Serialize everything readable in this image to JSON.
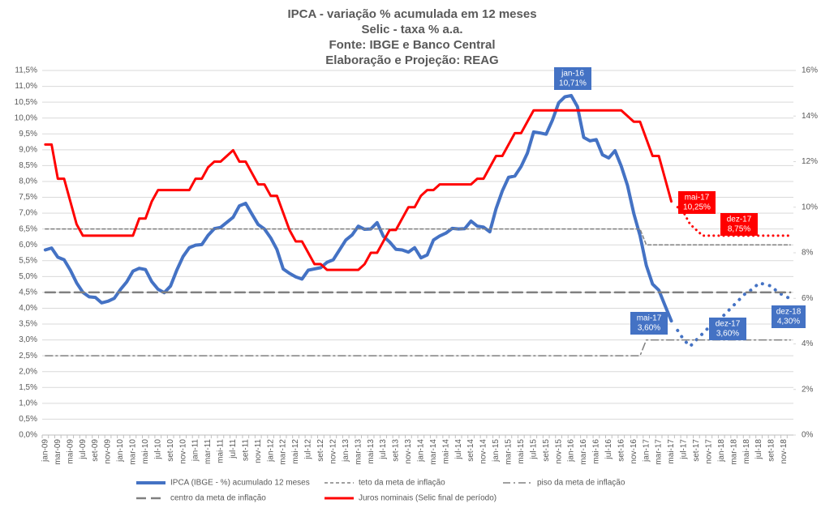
{
  "chart_data": {
    "type": "line",
    "title": [
      "IPCA - variação %  acumulada em 12 meses",
      "Selic - taxa % a.a.",
      "Fonte: IBGE e Banco Central",
      "Elaboração e Projeção: REAG"
    ],
    "categories": [
      "jan-09",
      null,
      "mar-09",
      null,
      "mai-09",
      null,
      "jul-09",
      null,
      "set-09",
      null,
      "nov-09",
      null,
      "jan-10",
      null,
      "mar-10",
      null,
      "mai-10",
      null,
      "jul-10",
      null,
      "set-10",
      null,
      "nov-10",
      null,
      "jan-11",
      null,
      "mar-11",
      null,
      "mai-11",
      null,
      "jul-11",
      null,
      "set-11",
      null,
      "nov-11",
      null,
      "jan-12",
      null,
      "mar-12",
      null,
      "mai-12",
      null,
      "jul-12",
      null,
      "set-12",
      null,
      "nov-12",
      null,
      "jan-13",
      null,
      "mar-13",
      null,
      "mai-13",
      null,
      "jul-13",
      null,
      "set-13",
      null,
      "nov-13",
      null,
      "jan-14",
      null,
      "mar-14",
      null,
      "mai-14",
      null,
      "jul-14",
      null,
      "set-14",
      null,
      "nov-14",
      null,
      "jan-15",
      null,
      "mar-15",
      null,
      "mai-15",
      null,
      "jul-15",
      null,
      "set-15",
      null,
      "nov-15",
      null,
      "jan-16",
      null,
      "mar-16",
      null,
      "mai-16",
      null,
      "jul-16",
      null,
      "set-16",
      null,
      "nov-16",
      null,
      "jan-17",
      null,
      "mar-17",
      null,
      "mai-17",
      null,
      "jul-17",
      null,
      "set-17",
      null,
      "nov-17",
      null,
      "jan-18",
      null,
      "mar-18",
      null,
      "mai-18",
      null,
      "jul-18",
      null,
      "set-18",
      null,
      "nov-18",
      null
    ],
    "ylim": [
      0,
      11.5
    ],
    "yticks": [
      {
        "value": 0,
        "label": "0,0%"
      },
      {
        "value": 0.5,
        "label": "0,5%"
      },
      {
        "value": 1,
        "label": "1,0%"
      },
      {
        "value": 1.5,
        "label": "1,5%"
      },
      {
        "value": 2,
        "label": "2,0%"
      },
      {
        "value": 2.5,
        "label": "2,5%"
      },
      {
        "value": 3,
        "label": "3,0%"
      },
      {
        "value": 3.5,
        "label": "3,5%"
      },
      {
        "value": 4,
        "label": "4,0%"
      },
      {
        "value": 4.5,
        "label": "4,5%"
      },
      {
        "value": 5,
        "label": "5,0%"
      },
      {
        "value": 5.5,
        "label": "5,5%"
      },
      {
        "value": 6,
        "label": "6,0%"
      },
      {
        "value": 6.5,
        "label": "6,5%"
      },
      {
        "value": 7,
        "label": "7,0%"
      },
      {
        "value": 7.5,
        "label": "7,5%"
      },
      {
        "value": 8,
        "label": "8,0%"
      },
      {
        "value": 8.5,
        "label": "8,5%"
      },
      {
        "value": 9,
        "label": "9,0%"
      },
      {
        "value": 9.5,
        "label": "9,5%"
      },
      {
        "value": 10,
        "label": "10,0%"
      },
      {
        "value": 10.5,
        "label": "10,5%"
      },
      {
        "value": 11,
        "label": "11,0%"
      },
      {
        "value": 11.5,
        "label": "11,5%"
      }
    ],
    "y2lim": [
      0,
      16
    ],
    "y2ticks": [
      {
        "value": 0,
        "label": "0%"
      },
      {
        "value": 2,
        "label": "2%"
      },
      {
        "value": 4,
        "label": "4%"
      },
      {
        "value": 6,
        "label": "6%"
      },
      {
        "value": 8,
        "label": "8%"
      },
      {
        "value": 10,
        "label": "10%"
      },
      {
        "value": 12,
        "label": "12%"
      },
      {
        "value": 14,
        "label": "14%"
      },
      {
        "value": 16,
        "label": "16%"
      }
    ],
    "grid": true,
    "series": [
      {
        "name": "IPCA (IBGE - %) acumulado 12 meses",
        "color": "#4472c4",
        "style": "solid",
        "values": [
          5.84,
          5.9,
          5.61,
          5.53,
          5.2,
          4.8,
          4.5,
          4.36,
          4.34,
          4.17,
          4.22,
          4.31,
          4.59,
          4.83,
          5.17,
          5.26,
          5.22,
          4.84,
          4.6,
          4.49,
          4.7,
          5.2,
          5.63,
          5.91,
          5.99,
          6.01,
          6.3,
          6.51,
          6.55,
          6.71,
          6.87,
          7.23,
          7.31,
          6.97,
          6.64,
          6.5,
          6.22,
          5.85,
          5.24,
          5.1,
          4.99,
          4.92,
          5.2,
          5.24,
          5.28,
          5.45,
          5.53,
          5.84,
          6.15,
          6.31,
          6.59,
          6.49,
          6.5,
          6.7,
          6.27,
          6.09,
          5.86,
          5.84,
          5.77,
          5.91,
          5.59,
          5.68,
          6.15,
          6.28,
          6.37,
          6.52,
          6.5,
          6.51,
          6.75,
          6.59,
          6.56,
          6.41,
          7.14,
          7.7,
          8.13,
          8.17,
          8.47,
          8.89,
          9.56,
          9.53,
          9.49,
          9.93,
          10.48,
          10.67,
          10.71,
          10.36,
          9.39,
          9.28,
          9.32,
          8.84,
          8.74,
          8.97,
          8.48,
          7.87,
          6.99,
          6.29,
          5.35,
          4.76,
          4.57,
          4.08,
          3.6,
          null,
          null,
          null,
          null,
          null,
          null,
          null,
          null,
          null,
          null,
          null,
          null,
          null,
          null,
          null,
          null,
          null,
          null,
          null
        ],
        "projection_values": [
          null,
          null,
          null,
          null,
          null,
          null,
          null,
          null,
          null,
          null,
          null,
          null,
          null,
          null,
          null,
          null,
          null,
          null,
          null,
          null,
          null,
          null,
          null,
          null,
          null,
          null,
          null,
          null,
          null,
          null,
          null,
          null,
          null,
          null,
          null,
          null,
          null,
          null,
          null,
          null,
          null,
          null,
          null,
          null,
          null,
          null,
          null,
          null,
          null,
          null,
          null,
          null,
          null,
          null,
          null,
          null,
          null,
          null,
          null,
          null,
          null,
          null,
          null,
          null,
          null,
          null,
          null,
          null,
          null,
          null,
          null,
          null,
          null,
          null,
          null,
          null,
          null,
          null,
          null,
          null,
          null,
          null,
          null,
          null,
          null,
          null,
          null,
          null,
          null,
          null,
          null,
          null,
          null,
          null,
          null,
          null,
          null,
          null,
          null,
          null,
          null,
          3.3,
          3.0,
          2.8,
          3.0,
          3.2,
          3.4,
          3.6,
          3.7,
          3.9,
          4.1,
          4.3,
          4.5,
          4.6,
          4.8,
          4.75,
          4.7,
          4.5,
          4.4,
          4.3
        ]
      },
      {
        "name": "teto da meta de inflação",
        "color": "#808080",
        "style": "dash",
        "values": [
          6.5,
          6.5,
          6.5,
          6.5,
          6.5,
          6.5,
          6.5,
          6.5,
          6.5,
          6.5,
          6.5,
          6.5,
          6.5,
          6.5,
          6.5,
          6.5,
          6.5,
          6.5,
          6.5,
          6.5,
          6.5,
          6.5,
          6.5,
          6.5,
          6.5,
          6.5,
          6.5,
          6.5,
          6.5,
          6.5,
          6.5,
          6.5,
          6.5,
          6.5,
          6.5,
          6.5,
          6.5,
          6.5,
          6.5,
          6.5,
          6.5,
          6.5,
          6.5,
          6.5,
          6.5,
          6.5,
          6.5,
          6.5,
          6.5,
          6.5,
          6.5,
          6.5,
          6.5,
          6.5,
          6.5,
          6.5,
          6.5,
          6.5,
          6.5,
          6.5,
          6.5,
          6.5,
          6.5,
          6.5,
          6.5,
          6.5,
          6.5,
          6.5,
          6.5,
          6.5,
          6.5,
          6.5,
          6.5,
          6.5,
          6.5,
          6.5,
          6.5,
          6.5,
          6.5,
          6.5,
          6.5,
          6.5,
          6.5,
          6.5,
          6.5,
          6.5,
          6.5,
          6.5,
          6.5,
          6.5,
          6.5,
          6.5,
          6.5,
          6.5,
          6.5,
          6.5,
          6,
          6,
          6,
          6,
          6,
          6,
          6,
          6,
          6,
          6,
          6,
          6,
          6,
          6,
          6,
          6,
          6,
          6,
          6,
          6,
          6,
          6,
          6,
          6
        ]
      },
      {
        "name": "piso da meta de inflação",
        "color": "#808080",
        "style": "dashdot",
        "values": [
          2.5,
          2.5,
          2.5,
          2.5,
          2.5,
          2.5,
          2.5,
          2.5,
          2.5,
          2.5,
          2.5,
          2.5,
          2.5,
          2.5,
          2.5,
          2.5,
          2.5,
          2.5,
          2.5,
          2.5,
          2.5,
          2.5,
          2.5,
          2.5,
          2.5,
          2.5,
          2.5,
          2.5,
          2.5,
          2.5,
          2.5,
          2.5,
          2.5,
          2.5,
          2.5,
          2.5,
          2.5,
          2.5,
          2.5,
          2.5,
          2.5,
          2.5,
          2.5,
          2.5,
          2.5,
          2.5,
          2.5,
          2.5,
          2.5,
          2.5,
          2.5,
          2.5,
          2.5,
          2.5,
          2.5,
          2.5,
          2.5,
          2.5,
          2.5,
          2.5,
          2.5,
          2.5,
          2.5,
          2.5,
          2.5,
          2.5,
          2.5,
          2.5,
          2.5,
          2.5,
          2.5,
          2.5,
          2.5,
          2.5,
          2.5,
          2.5,
          2.5,
          2.5,
          2.5,
          2.5,
          2.5,
          2.5,
          2.5,
          2.5,
          2.5,
          2.5,
          2.5,
          2.5,
          2.5,
          2.5,
          2.5,
          2.5,
          2.5,
          2.5,
          2.5,
          2.5,
          3,
          3,
          3,
          3,
          3,
          3,
          3,
          3,
          3,
          3,
          3,
          3,
          3,
          3,
          3,
          3,
          3,
          3,
          3,
          3,
          3,
          3,
          3,
          3
        ]
      },
      {
        "name": "centro da meta de inflação",
        "color": "#808080",
        "style": "longdash",
        "values": [
          4.5,
          4.5,
          4.5,
          4.5,
          4.5,
          4.5,
          4.5,
          4.5,
          4.5,
          4.5,
          4.5,
          4.5,
          4.5,
          4.5,
          4.5,
          4.5,
          4.5,
          4.5,
          4.5,
          4.5,
          4.5,
          4.5,
          4.5,
          4.5,
          4.5,
          4.5,
          4.5,
          4.5,
          4.5,
          4.5,
          4.5,
          4.5,
          4.5,
          4.5,
          4.5,
          4.5,
          4.5,
          4.5,
          4.5,
          4.5,
          4.5,
          4.5,
          4.5,
          4.5,
          4.5,
          4.5,
          4.5,
          4.5,
          4.5,
          4.5,
          4.5,
          4.5,
          4.5,
          4.5,
          4.5,
          4.5,
          4.5,
          4.5,
          4.5,
          4.5,
          4.5,
          4.5,
          4.5,
          4.5,
          4.5,
          4.5,
          4.5,
          4.5,
          4.5,
          4.5,
          4.5,
          4.5,
          4.5,
          4.5,
          4.5,
          4.5,
          4.5,
          4.5,
          4.5,
          4.5,
          4.5,
          4.5,
          4.5,
          4.5,
          4.5,
          4.5,
          4.5,
          4.5,
          4.5,
          4.5,
          4.5,
          4.5,
          4.5,
          4.5,
          4.5,
          4.5,
          4.5,
          4.5,
          4.5,
          4.5,
          4.5,
          4.5,
          4.5,
          4.5,
          4.5,
          4.5,
          4.5,
          4.5,
          4.5,
          4.5,
          4.5,
          4.5,
          4.5,
          4.5,
          4.5,
          4.5,
          4.5,
          4.5,
          4.5,
          4.5
        ]
      },
      {
        "name": "Juros nominais (Selic final de período)",
        "color": "#ff0000",
        "style": "solid",
        "axis": "y2",
        "values": [
          12.75,
          12.75,
          11.25,
          11.25,
          10.25,
          9.25,
          8.75,
          8.75,
          8.75,
          8.75,
          8.75,
          8.75,
          8.75,
          8.75,
          8.75,
          9.5,
          9.5,
          10.25,
          10.75,
          10.75,
          10.75,
          10.75,
          10.75,
          10.75,
          11.25,
          11.25,
          11.75,
          12,
          12,
          12.25,
          12.5,
          12,
          12,
          11.5,
          11,
          11,
          10.5,
          10.5,
          9.75,
          9,
          8.5,
          8.5,
          8,
          7.5,
          7.5,
          7.25,
          7.25,
          7.25,
          7.25,
          7.25,
          7.25,
          7.5,
          8,
          8,
          8.5,
          9,
          9,
          9.5,
          10,
          10,
          10.5,
          10.75,
          10.75,
          11,
          11,
          11,
          11,
          11,
          11,
          11.25,
          11.25,
          11.75,
          12.25,
          12.25,
          12.75,
          13.25,
          13.25,
          13.75,
          14.25,
          14.25,
          14.25,
          14.25,
          14.25,
          14.25,
          14.25,
          14.25,
          14.25,
          14.25,
          14.25,
          14.25,
          14.25,
          14.25,
          14.25,
          14,
          13.75,
          13.75,
          13,
          12.25,
          12.25,
          11.25,
          10.25,
          null,
          null,
          null,
          null,
          null,
          null,
          null,
          null,
          null,
          null,
          null,
          null,
          null,
          null,
          null,
          null,
          null,
          null,
          null
        ],
        "projection_values": [
          null,
          null,
          null,
          null,
          null,
          null,
          null,
          null,
          null,
          null,
          null,
          null,
          null,
          null,
          null,
          null,
          null,
          null,
          null,
          null,
          null,
          null,
          null,
          null,
          null,
          null,
          null,
          null,
          null,
          null,
          null,
          null,
          null,
          null,
          null,
          null,
          null,
          null,
          null,
          null,
          null,
          null,
          null,
          null,
          null,
          null,
          null,
          null,
          null,
          null,
          null,
          null,
          null,
          null,
          null,
          null,
          null,
          null,
          null,
          null,
          null,
          null,
          null,
          null,
          null,
          null,
          null,
          null,
          null,
          null,
          null,
          null,
          null,
          null,
          null,
          null,
          null,
          null,
          null,
          null,
          null,
          null,
          null,
          null,
          null,
          null,
          null,
          null,
          null,
          null,
          null,
          null,
          null,
          null,
          null,
          null,
          null,
          null,
          null,
          null,
          null,
          10,
          9.75,
          9.25,
          9,
          8.75,
          8.75,
          8.75,
          8.75,
          8.75,
          8.75,
          8.75,
          8.75,
          8.75,
          8.75,
          8.75,
          8.75,
          8.75,
          8.75,
          8.75
        ]
      }
    ],
    "annotations": [
      {
        "text": [
          "jan-16",
          "10,71%"
        ],
        "color": "#4472c4"
      },
      {
        "text": [
          "mai-17",
          "3,60%"
        ],
        "color": "#4472c4"
      },
      {
        "text": [
          "dez-17",
          "3,60%"
        ],
        "color": "#4472c4"
      },
      {
        "text": [
          "dez-18",
          "4,30%"
        ],
        "color": "#4472c4"
      },
      {
        "text": [
          "mai-17",
          "10,25%"
        ],
        "color": "#ff0000"
      },
      {
        "text": [
          "dez-17",
          "8,75%"
        ],
        "color": "#ff0000"
      }
    ]
  }
}
